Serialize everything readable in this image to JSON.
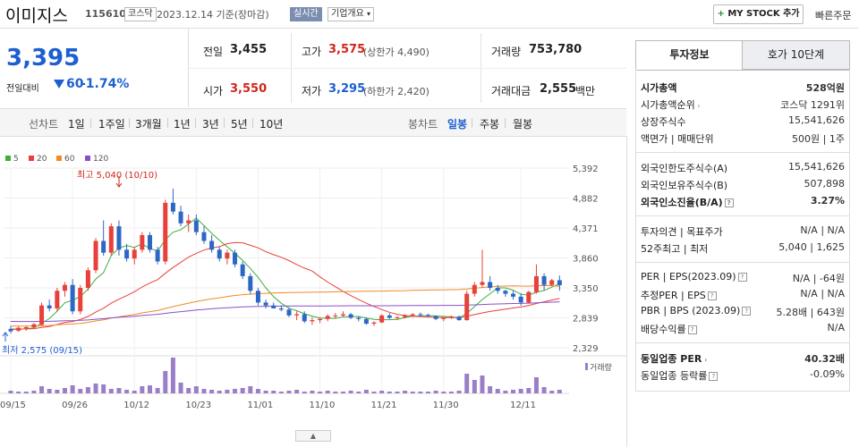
{
  "header": {
    "name": "이미지스",
    "code": "115610",
    "market": "코스닥",
    "date_text": "2023.12.14  기준(장마감)",
    "realtime": "실시간",
    "company_overview": "기업개요",
    "mystock_label": "MY STOCK 추가",
    "quick_order": "빠른주문"
  },
  "price": {
    "current": "3,395",
    "change_label": "전일대비",
    "change": "60",
    "change_pct": "-1.74%"
  },
  "summary": {
    "prev_label": "전일",
    "prev": "3,455",
    "high_label": "고가",
    "high": "3,575",
    "upper_limit": "(상한가 4,490)",
    "volume_label": "거래량",
    "volume": "753,780",
    "open_label": "시가",
    "open": "3,550",
    "low_label": "저가",
    "low": "3,295",
    "lower_limit": "(하한가 2,420)",
    "amount_label": "거래대금",
    "amount": "2,555",
    "amount_unit": "백만"
  },
  "controls": {
    "line_chart": "선차트",
    "periods": [
      "1일",
      "1주일",
      "3개월",
      "1년",
      "3년",
      "5년",
      "10년"
    ],
    "candle_chart": "봉차트",
    "candle_periods": [
      "일봉",
      "주봉",
      "월봉"
    ]
  },
  "chart": {
    "legend": [
      {
        "label": "5",
        "color": "#3cae3c"
      },
      {
        "label": "20",
        "color": "#e8403a"
      },
      {
        "label": "60",
        "color": "#f08a24"
      },
      {
        "label": "120",
        "color": "#8a4fc8"
      }
    ],
    "high_annot": "최고 5,040 (10/10)",
    "low_annot": "최저 2,575 (09/15)",
    "volume_label": "거래량"
  },
  "chart_data": {
    "type": "candlestick",
    "y_ticks": [
      "5,392",
      "4,882",
      "4,371",
      "3,860",
      "3,350",
      "2,839",
      "2,329"
    ],
    "ylim": [
      2329,
      5392
    ],
    "x_ticks": [
      "09/15",
      "09/26",
      "10/12",
      "10/23",
      "11/01",
      "11/10",
      "11/21",
      "11/30",
      "12/11"
    ],
    "ohlc": [
      [
        2650,
        2700,
        2575,
        2610
      ],
      [
        2620,
        2690,
        2600,
        2670
      ],
      [
        2660,
        2700,
        2620,
        2680
      ],
      [
        2680,
        2750,
        2650,
        2730
      ],
      [
        2720,
        3100,
        2700,
        3050
      ],
      [
        3050,
        3150,
        2950,
        3000
      ],
      [
        3000,
        3350,
        2950,
        3300
      ],
      [
        3300,
        3450,
        3200,
        3400
      ],
      [
        3400,
        3500,
        2900,
        2950
      ],
      [
        2950,
        3400,
        2900,
        3350
      ],
      [
        3350,
        3700,
        3300,
        3650
      ],
      [
        3650,
        4200,
        3600,
        4150
      ],
      [
        4150,
        4500,
        3900,
        3950
      ],
      [
        3950,
        4450,
        3900,
        4400
      ],
      [
        4400,
        4500,
        3900,
        4000
      ],
      [
        4000,
        4100,
        3800,
        3850
      ],
      [
        3850,
        4050,
        3750,
        4000
      ],
      [
        4000,
        4300,
        3950,
        4250
      ],
      [
        4250,
        4300,
        3950,
        4000
      ],
      [
        4000,
        4050,
        3750,
        3800
      ],
      [
        3800,
        4850,
        3750,
        4800
      ],
      [
        4800,
        5040,
        4600,
        4650
      ],
      [
        4650,
        4750,
        4400,
        4450
      ],
      [
        4450,
        4600,
        4300,
        4500
      ],
      [
        4500,
        4600,
        4250,
        4300
      ],
      [
        4300,
        4400,
        4100,
        4150
      ],
      [
        4150,
        4250,
        3950,
        4000
      ],
      [
        4000,
        4050,
        3800,
        3850
      ],
      [
        3850,
        4000,
        3750,
        3950
      ],
      [
        3950,
        4000,
        3700,
        3750
      ],
      [
        3750,
        3800,
        3500,
        3550
      ],
      [
        3550,
        3600,
        3250,
        3300
      ],
      [
        3300,
        3350,
        3050,
        3100
      ],
      [
        3100,
        3150,
        3000,
        3050
      ],
      [
        3050,
        3100,
        3000,
        3000
      ],
      [
        3000,
        3050,
        2950,
        2980
      ],
      [
        2980,
        3020,
        2850,
        2880
      ],
      [
        2880,
        2950,
        2800,
        2900
      ],
      [
        2900,
        2950,
        2750,
        2780
      ],
      [
        2780,
        2850,
        2720,
        2800
      ],
      [
        2800,
        2850,
        2750,
        2820
      ],
      [
        2820,
        2900,
        2780,
        2870
      ],
      [
        2870,
        2920,
        2830,
        2880
      ],
      [
        2880,
        2950,
        2850,
        2900
      ],
      [
        2900,
        2920,
        2820,
        2840
      ],
      [
        2840,
        2870,
        2780,
        2820
      ],
      [
        2820,
        2850,
        2720,
        2740
      ],
      [
        2740,
        2780,
        2700,
        2760
      ],
      [
        2760,
        2900,
        2750,
        2880
      ],
      [
        2880,
        2920,
        2820,
        2840
      ],
      [
        2840,
        2870,
        2800,
        2850
      ],
      [
        2850,
        2900,
        2830,
        2880
      ],
      [
        2880,
        2920,
        2850,
        2900
      ],
      [
        2900,
        2930,
        2860,
        2890
      ],
      [
        2890,
        2910,
        2850,
        2870
      ],
      [
        2870,
        2880,
        2800,
        2820
      ],
      [
        2820,
        2850,
        2780,
        2840
      ],
      [
        2840,
        2880,
        2820,
        2860
      ],
      [
        2860,
        2880,
        2790,
        2800
      ],
      [
        2800,
        3300,
        2790,
        3250
      ],
      [
        3250,
        3450,
        3200,
        3400
      ],
      [
        3400,
        4000,
        3350,
        3450
      ],
      [
        3450,
        3550,
        3300,
        3350
      ],
      [
        3350,
        3400,
        3250,
        3300
      ],
      [
        3300,
        3320,
        3200,
        3250
      ],
      [
        3250,
        3300,
        3150,
        3200
      ],
      [
        3200,
        3260,
        3050,
        3100
      ],
      [
        3100,
        3300,
        3080,
        3280
      ],
      [
        3280,
        3750,
        3250,
        3550
      ],
      [
        3550,
        3600,
        3300,
        3400
      ],
      [
        3400,
        3500,
        3380,
        3480
      ],
      [
        3480,
        3560,
        3300,
        3395
      ]
    ],
    "volume_note": "relative daily trading volume bars"
  },
  "tabs": {
    "invest": "투자정보",
    "hoga": "호가 10단계"
  },
  "invest": {
    "market_cap_label": "시가총액",
    "market_cap": "528억원",
    "rank_label": "시가총액순위",
    "rank_market": "코스닥",
    "rank": "1291위",
    "shares_label": "상장주식수",
    "shares": "15,541,626",
    "par_label": "액면가",
    "par_sep": "|",
    "unit_label": "매매단위",
    "par": "500원",
    "unit": "1주",
    "foreign_limit_label": "외국인한도주식수(A)",
    "foreign_limit": "15,541,626",
    "foreign_hold_label": "외국인보유주식수(B)",
    "foreign_hold": "507,898",
    "foreign_ratio_label": "외국인소진율(B/A)",
    "foreign_ratio": "3.27%",
    "opinion_label": "투자의견",
    "target_label": "목표주가",
    "opinion": "N/A",
    "target": "N/A",
    "w52_high_label": "52주최고",
    "w52_low_label": "최저",
    "w52_high": "5,040",
    "w52_low": "1,625",
    "per_label": "PER",
    "eps_label": "EPS(2023.09)",
    "per": "N/A",
    "eps": "-64원",
    "est_per_label": "추정PER",
    "est_eps_label": "EPS",
    "est_per": "N/A",
    "est_eps": "N/A",
    "pbr_label": "PBR",
    "bps_label": "BPS (2023.09)",
    "pbr": "5.28배",
    "bps": "643원",
    "div_label": "배당수익률",
    "div": "N/A",
    "ind_per_label": "동일업종 PER",
    "ind_per": "40.32배",
    "ind_chg_label": "동일업종 등락률",
    "ind_chg": "-0.09%"
  }
}
